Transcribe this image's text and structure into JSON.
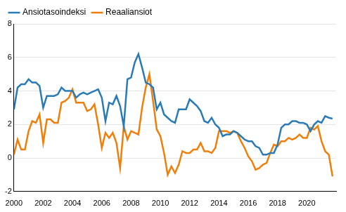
{
  "chart_data": {
    "type": "line",
    "x": [
      2000,
      2000.25,
      2000.5,
      2000.75,
      2001,
      2001.25,
      2001.5,
      2001.75,
      2002,
      2002.25,
      2002.5,
      2002.75,
      2003,
      2003.25,
      2003.5,
      2003.75,
      2004,
      2004.25,
      2004.5,
      2004.75,
      2005,
      2005.25,
      2005.5,
      2005.75,
      2006,
      2006.25,
      2006.5,
      2006.75,
      2007,
      2007.25,
      2007.5,
      2007.75,
      2008,
      2008.25,
      2008.5,
      2008.75,
      2009,
      2009.25,
      2009.5,
      2009.75,
      2010,
      2010.25,
      2010.5,
      2010.75,
      2011,
      2011.25,
      2011.5,
      2011.75,
      2012,
      2012.25,
      2012.5,
      2012.75,
      2013,
      2013.25,
      2013.5,
      2013.75,
      2014,
      2014.25,
      2014.5,
      2014.75,
      2015,
      2015.25,
      2015.5,
      2015.75,
      2016,
      2016.25,
      2016.5,
      2016.75,
      2017,
      2017.25,
      2017.5,
      2017.75,
      2018,
      2018.25,
      2018.5,
      2018.75,
      2019,
      2019.25,
      2019.5,
      2019.75,
      2020,
      2020.25,
      2020.5,
      2020.75,
      2021,
      2021.25,
      2021.5,
      2021.75
    ],
    "series": [
      {
        "name": "Ansiotasoindeksi",
        "color": "#2a7bb5",
        "values": [
          2.9,
          4.2,
          4.4,
          4.4,
          4.7,
          4.5,
          4.5,
          4.3,
          3.0,
          3.7,
          3.7,
          3.7,
          3.8,
          4.2,
          4.0,
          4.0,
          4.0,
          3.6,
          3.8,
          3.9,
          3.8,
          3.9,
          4.0,
          4.1,
          3.6,
          2.2,
          3.3,
          3.2,
          3.7,
          3.1,
          1.9,
          4.7,
          4.8,
          5.7,
          6.2,
          5.4,
          4.5,
          4.4,
          4.2,
          2.9,
          3.3,
          2.6,
          2.4,
          2.2,
          2.1,
          2.9,
          2.9,
          2.9,
          3.5,
          3.3,
          3.1,
          2.8,
          2.2,
          2.1,
          2.4,
          2.0,
          1.8,
          1.3,
          1.4,
          1.4,
          1.6,
          1.5,
          1.3,
          1.1,
          1.0,
          1.0,
          0.7,
          0.6,
          0.2,
          0.2,
          0.3,
          0.3,
          0.8,
          1.8,
          2.0,
          2.0,
          2.2,
          2.2,
          2.1,
          2.1,
          2.0,
          1.6,
          2.0,
          2.2,
          2.1,
          2.5,
          2.4,
          2.35
        ]
      },
      {
        "name": "Reaaliansiot",
        "color": "#f07f09",
        "values": [
          0.2,
          1.1,
          0.5,
          0.5,
          1.6,
          2.2,
          2.1,
          2.6,
          0.9,
          2.3,
          2.3,
          2.1,
          2.1,
          3.3,
          3.4,
          3.6,
          4.1,
          3.3,
          3.3,
          3.3,
          2.8,
          2.9,
          3.2,
          2.0,
          0.6,
          1.5,
          1.2,
          1.5,
          0.9,
          -0.6,
          1.9,
          1.1,
          1.6,
          1.5,
          1.4,
          3.0,
          4.2,
          5.0,
          3.4,
          1.7,
          1.3,
          0.3,
          -1.0,
          -0.5,
          -0.9,
          -0.4,
          0.4,
          0.3,
          0.3,
          0.5,
          0.5,
          0.9,
          0.4,
          0.4,
          0.3,
          0.6,
          1.6,
          1.6,
          1.6,
          1.5,
          1.6,
          1.5,
          1.0,
          0.6,
          0.1,
          -0.2,
          -0.7,
          -0.6,
          -0.4,
          -0.3,
          0.3,
          0.8,
          0.7,
          1.0,
          1.0,
          1.2,
          1.1,
          1.2,
          1.4,
          1.2,
          1.2,
          1.8,
          1.7,
          1.9,
          1.0,
          0.4,
          0.2,
          -1.1
        ]
      }
    ],
    "xlim": [
      2000,
      2022
    ],
    "xticks": [
      2000,
      2002,
      2004,
      2006,
      2008,
      2010,
      2012,
      2014,
      2016,
      2018,
      2020
    ],
    "ylim": [
      -2,
      8
    ],
    "yticks": [
      -2,
      0,
      2,
      4,
      6,
      8
    ],
    "grid": true,
    "legend": "top-left"
  }
}
